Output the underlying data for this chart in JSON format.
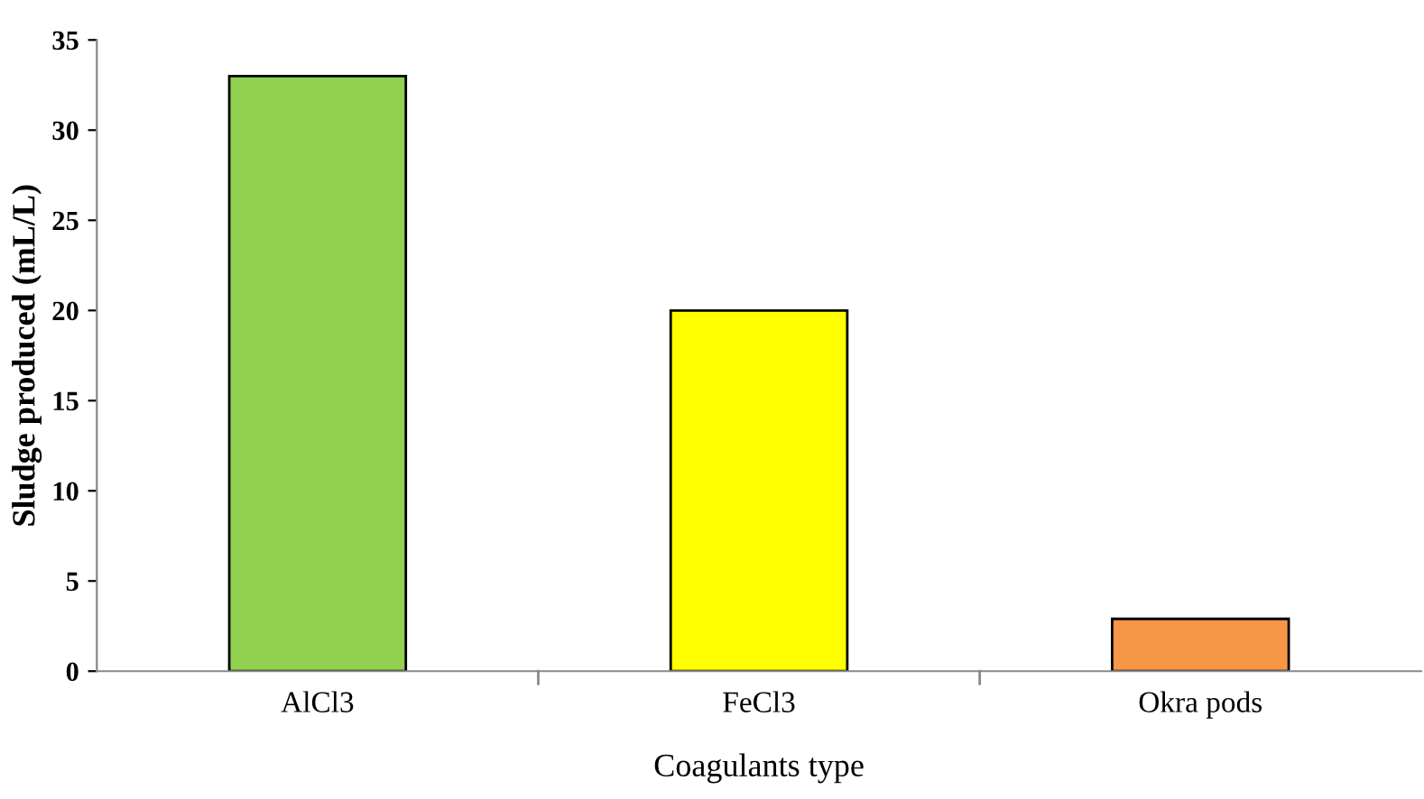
{
  "chart_data": {
    "type": "bar",
    "categories": [
      "AlCl3",
      "FeCl3",
      "Okra pods"
    ],
    "values": [
      33,
      20,
      2.9
    ],
    "colors": [
      "#92d050",
      "#ffff00",
      "#f79646"
    ],
    "xlabel": "Coagulants type",
    "ylabel": "Sludge produced (mL/L)",
    "ylim": [
      0,
      35
    ],
    "yticks": [
      0,
      5,
      10,
      15,
      20,
      25,
      30,
      35
    ],
    "grid": false,
    "legend": false
  }
}
